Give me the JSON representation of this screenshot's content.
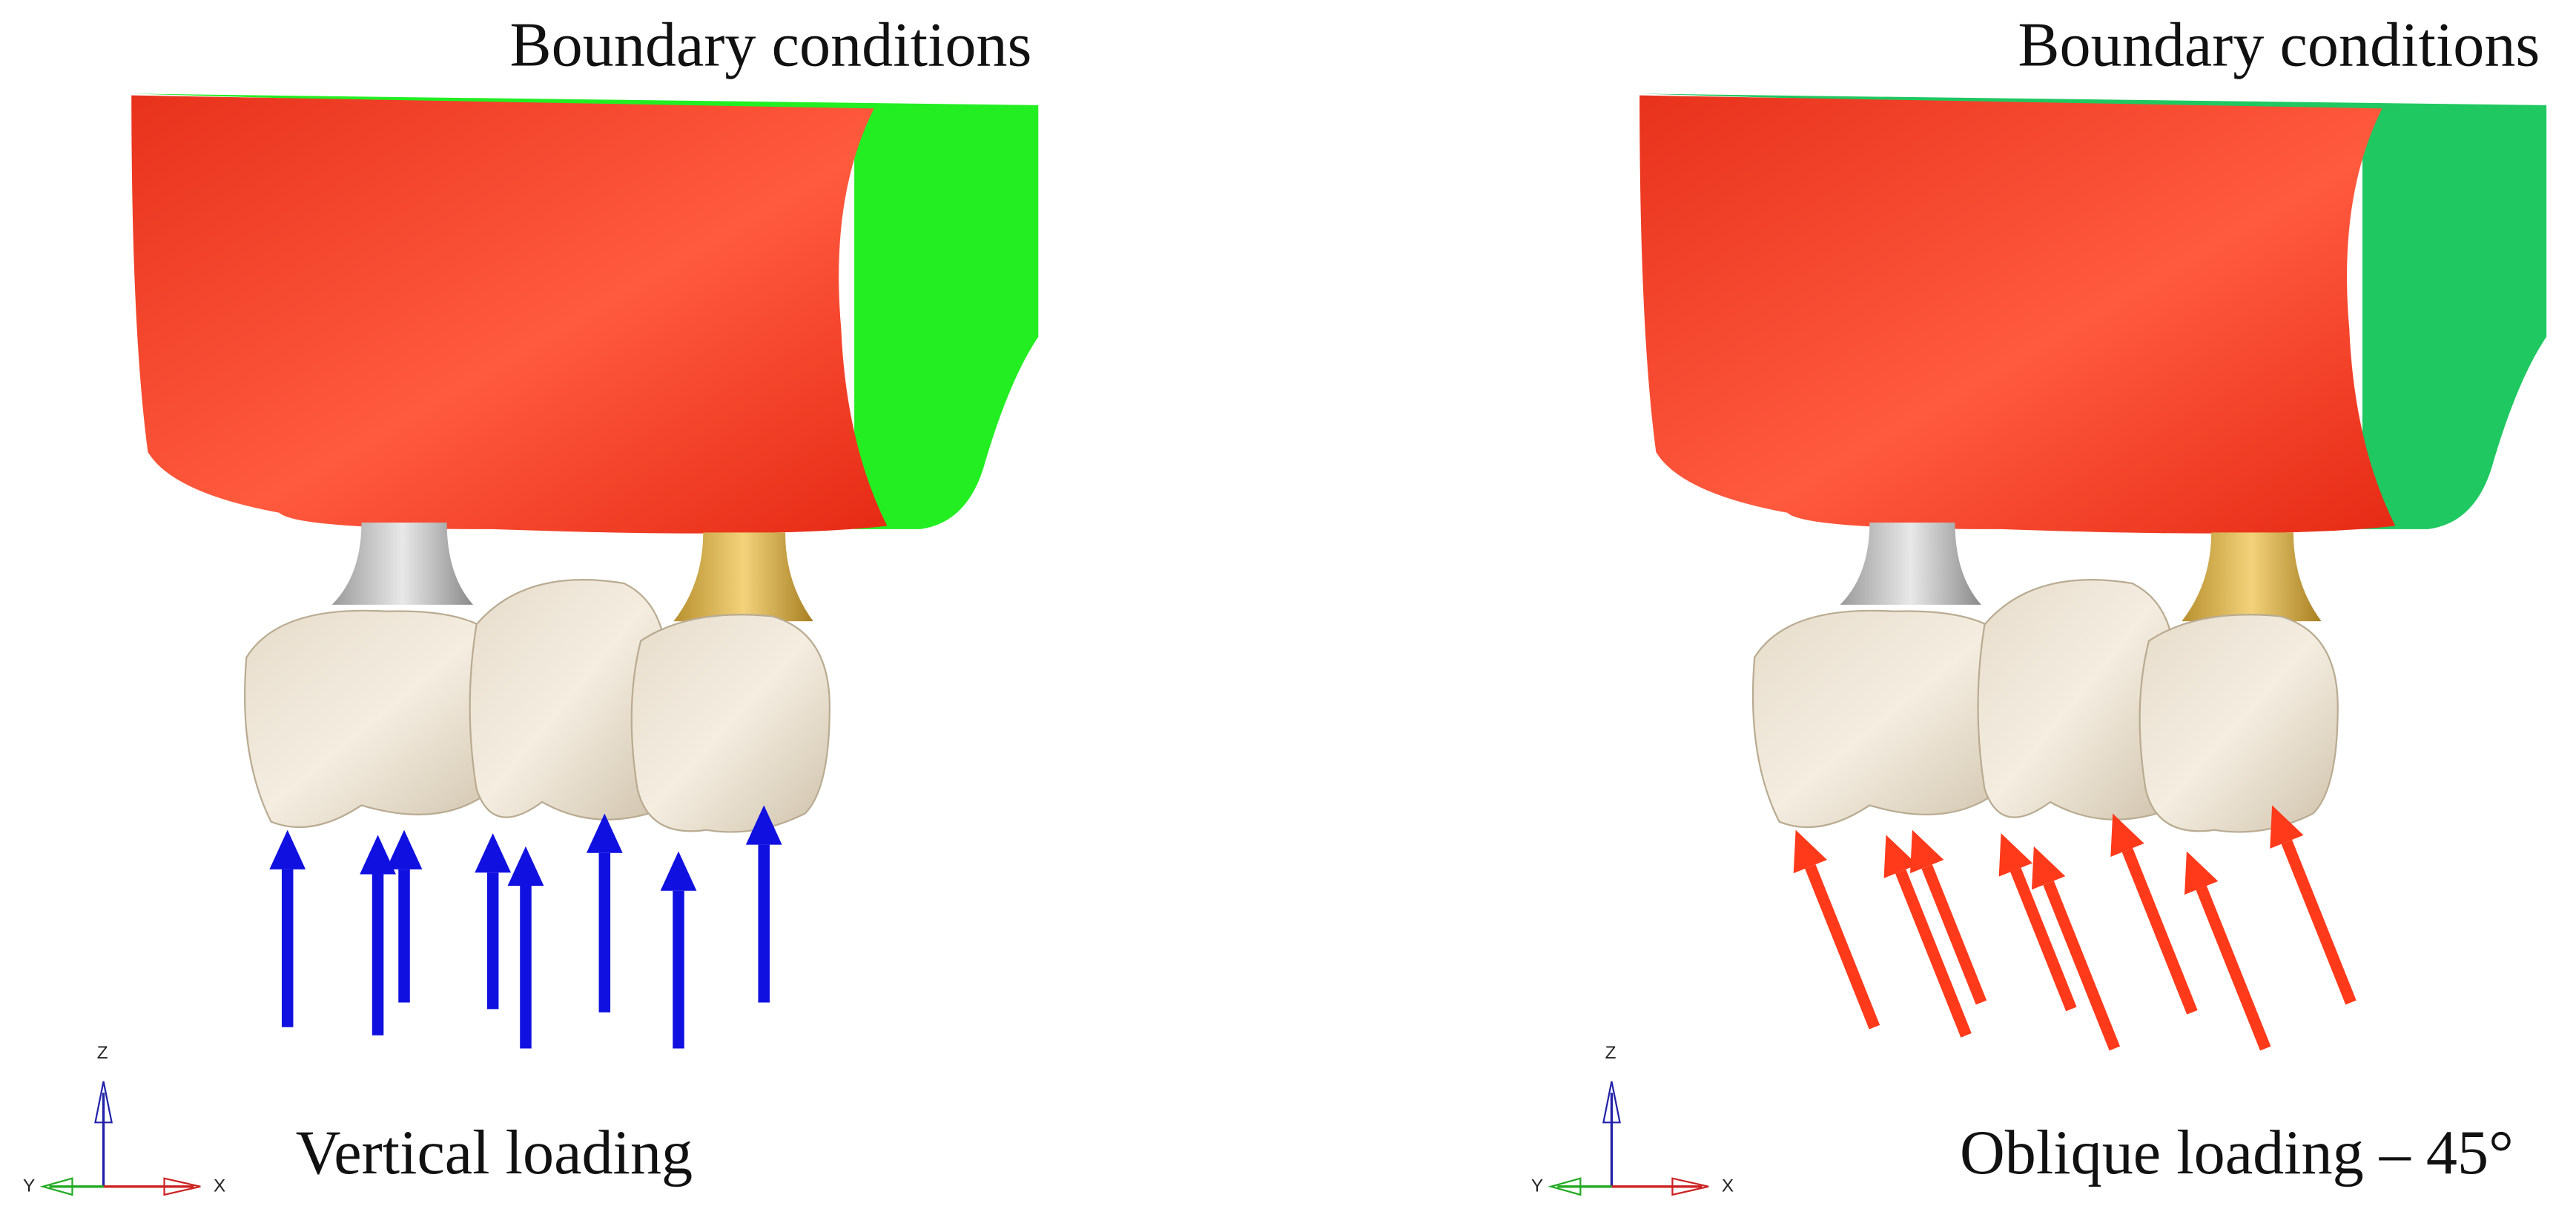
{
  "panels": [
    {
      "title": "Boundary conditions",
      "caption": "Vertical loading",
      "axes": {
        "z": "Z",
        "y": "Y",
        "x": "X"
      }
    },
    {
      "title": "Boundary conditions",
      "caption": "Oblique loading – 45°",
      "axes": {
        "z": "Z",
        "y": "Y",
        "x": "X"
      }
    }
  ]
}
